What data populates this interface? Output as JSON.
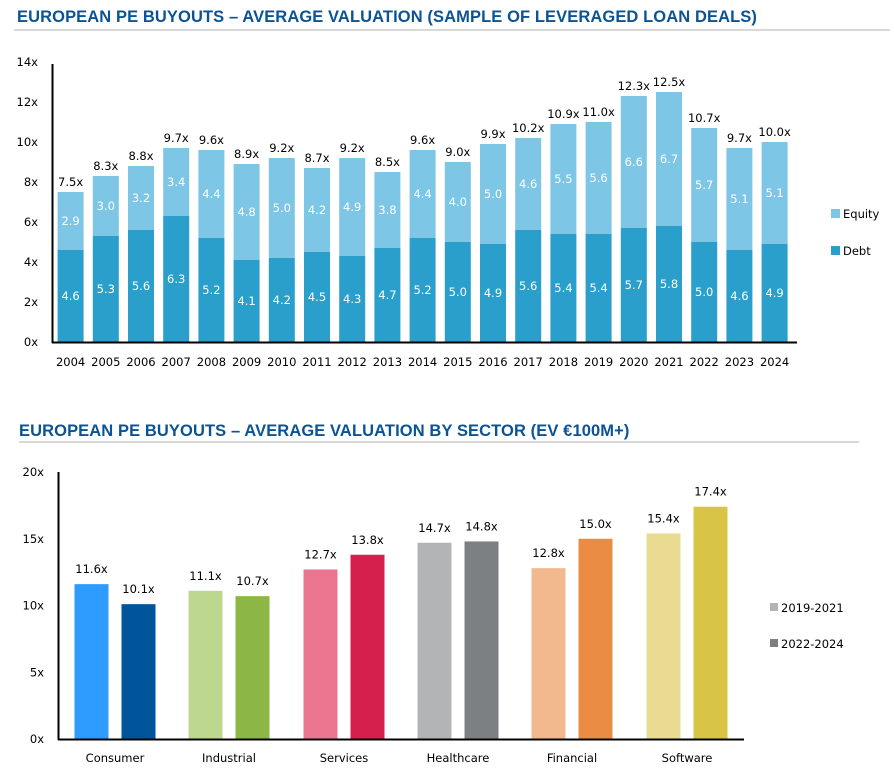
{
  "colors": {
    "title": "#0b5394",
    "debt": "#2a9fcc",
    "equity": "#7ec6e5",
    "rule": "#d9d9d9"
  },
  "chart_data": [
    {
      "type": "bar",
      "stacked": true,
      "title": "EUROPEAN PE BUYOUTS – AVERAGE VALUATION (SAMPLE OF LEVERAGED LOAN DEALS)",
      "xlabel": "",
      "ylabel": "",
      "ylim": [
        0,
        14
      ],
      "yticks": [
        0,
        2,
        4,
        6,
        8,
        10,
        12,
        14
      ],
      "ytick_suffix": "x",
      "grid": false,
      "legend": "right",
      "categories": [
        "2004",
        "2005",
        "2006",
        "2007",
        "2008",
        "2009",
        "2010",
        "2011",
        "2012",
        "2013",
        "2014",
        "2015",
        "2016",
        "2017",
        "2018",
        "2019",
        "2020",
        "2021",
        "2022",
        "2023",
        "2024"
      ],
      "series": [
        {
          "name": "Debt",
          "color": "#2a9fcc",
          "values": [
            4.6,
            5.3,
            5.6,
            6.3,
            5.2,
            4.1,
            4.2,
            4.5,
            4.3,
            4.7,
            5.2,
            5.0,
            4.9,
            5.6,
            5.4,
            5.4,
            5.7,
            5.8,
            5.0,
            4.6,
            4.9
          ]
        },
        {
          "name": "Equity",
          "color": "#7ec6e5",
          "values": [
            2.9,
            3.0,
            3.2,
            3.4,
            4.4,
            4.8,
            5.0,
            4.2,
            4.9,
            3.8,
            4.4,
            4.0,
            5.0,
            4.6,
            5.5,
            5.6,
            6.6,
            6.7,
            5.7,
            5.1,
            5.1
          ]
        }
      ],
      "totals": [
        "7.5x",
        "8.3x",
        "8.8x",
        "9.7x",
        "9.6x",
        "8.9x",
        "9.2x",
        "8.7x",
        "9.2x",
        "8.5x",
        "9.6x",
        "9.0x",
        "9.9x",
        "10.2x",
        "10.9x",
        "11.0x",
        "12.3x",
        "12.5x",
        "10.7x",
        "9.7x",
        "10.0x"
      ],
      "legend_entries": [
        "Equity",
        "Debt"
      ]
    },
    {
      "type": "bar",
      "stacked": false,
      "title": "EUROPEAN PE BUYOUTS – AVERAGE VALUATION BY SECTOR (EV €100M+)",
      "xlabel": "",
      "ylabel": "",
      "ylim": [
        0,
        20
      ],
      "yticks": [
        0,
        5,
        10,
        15,
        20
      ],
      "ytick_suffix": "x",
      "grid": false,
      "legend": "right",
      "categories": [
        "Consumer",
        "Industrial",
        "Services",
        "Healthcare",
        "Financial",
        "Software"
      ],
      "series": [
        {
          "name": "2019-2021",
          "legend_color": "#b3b3b3",
          "values": [
            11.6,
            11.1,
            12.7,
            14.7,
            12.8,
            15.4
          ],
          "colors": [
            "#2e9bff",
            "#bdd78f",
            "#ec7590",
            "#b3b4b6",
            "#f2b98e",
            "#e9db92"
          ],
          "labels": [
            "11.6x",
            "11.1x",
            "12.7x",
            "14.7x",
            "12.8x",
            "15.4x"
          ]
        },
        {
          "name": "2022-2024",
          "legend_color": "#7d8083",
          "values": [
            10.1,
            10.7,
            13.8,
            14.8,
            15.0,
            17.4
          ],
          "colors": [
            "#00549b",
            "#8db744",
            "#d51f4c",
            "#7d8083",
            "#ea8c44",
            "#d8c445"
          ],
          "labels": [
            "10.1x",
            "10.7x",
            "13.8x",
            "14.8x",
            "15.0x",
            "17.4x"
          ]
        }
      ],
      "legend_entries": [
        "2019-2021",
        "2022-2024"
      ]
    }
  ]
}
